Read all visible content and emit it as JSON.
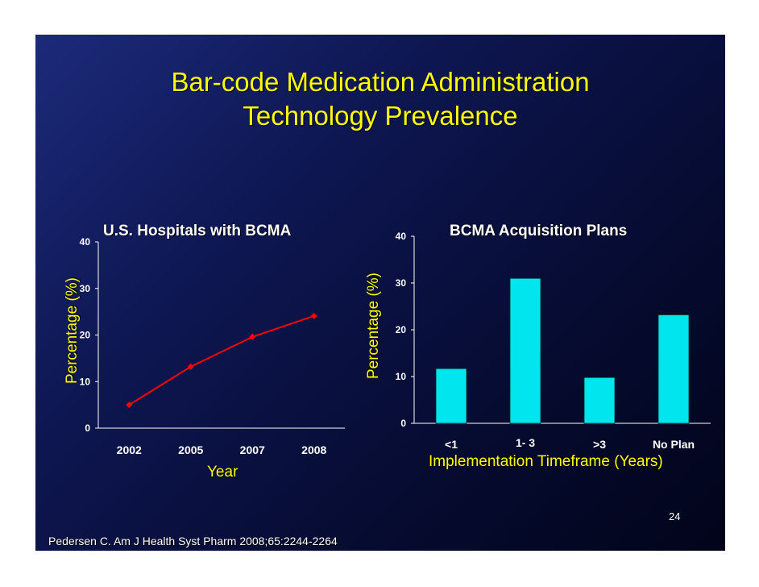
{
  "slide": {
    "title_line1": "Bar-code Medication Administration",
    "title_line2": "Technology Prevalence",
    "citation": "Pedersen C. Am J Health Syst Pharm 2008;65:2244-2264",
    "page_number": "24",
    "background_color": "#0d1650",
    "title_color": "#ffff00"
  },
  "chart_data": [
    {
      "type": "line",
      "title": "U.S. Hospitals with BCMA",
      "xlabel": "Year",
      "ylabel": "Percentage (%)",
      "categories": [
        "2002",
        "2005",
        "2007",
        "2008"
      ],
      "values": [
        5,
        13.2,
        19.6,
        24.1
      ],
      "ylim": [
        0,
        40
      ],
      "yticks": [
        "0",
        "10",
        "20",
        "30",
        "40"
      ],
      "line_color": "#ff0000"
    },
    {
      "type": "bar",
      "title": "BCMA Acquisition Plans",
      "xlabel": "Implementation Timeframe (Years)",
      "ylabel": "Percentage (%)",
      "categories": [
        "<1",
        "1- 3",
        ">3",
        "No Plan"
      ],
      "values": [
        11.7,
        31,
        9.8,
        23.2
      ],
      "ylim": [
        0,
        40
      ],
      "yticks": [
        "0",
        "10",
        "20",
        "30",
        "40"
      ],
      "bar_color": "#00e5ee"
    }
  ]
}
